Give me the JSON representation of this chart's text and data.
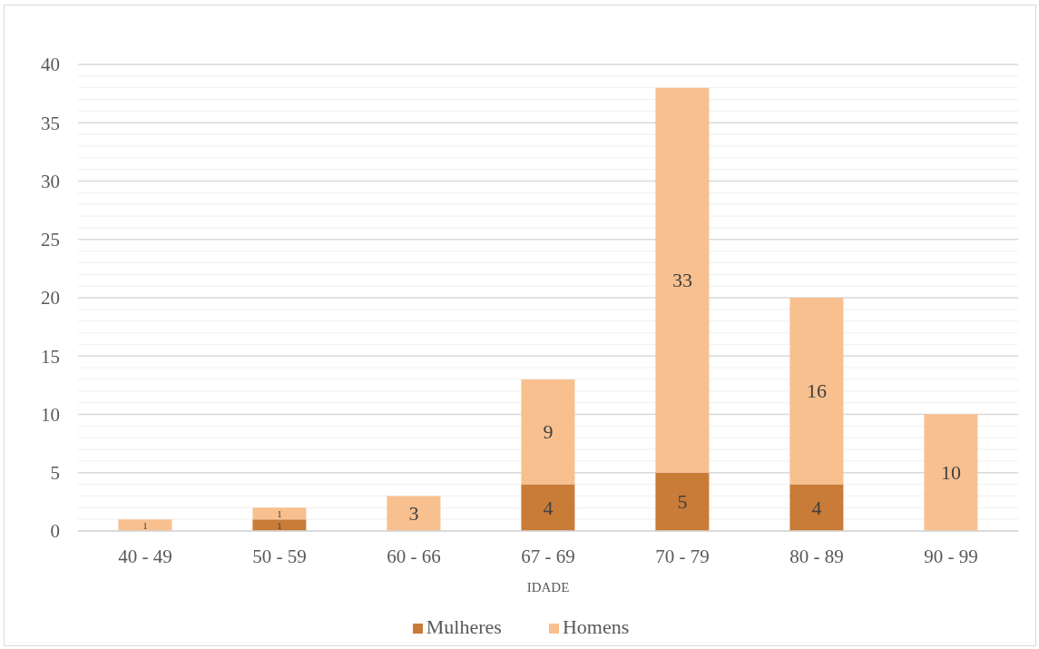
{
  "chart_data": {
    "type": "bar",
    "xlabel": "IDADE",
    "categories": [
      "40 - 49",
      "50 - 59",
      "60 - 66",
      "67 - 69",
      "70 - 79",
      "80 - 89",
      "90 - 99"
    ],
    "series": [
      {
        "name": "Mulheres",
        "color": "#c97b38",
        "values": [
          null,
          1,
          null,
          4,
          5,
          4,
          null
        ]
      },
      {
        "name": "Homens",
        "color": "#f8c08f",
        "values": [
          1,
          1,
          3,
          9,
          33,
          16,
          10
        ]
      }
    ],
    "stacked": true,
    "ylim": [
      0,
      40
    ],
    "yticks": [
      0,
      {
        "value": 1,
        "label": null
      },
      {
        "value": 2,
        "label": null
      },
      {
        "value": 3,
        "label": null
      },
      {
        "value": 4,
        "label": null
      },
      5,
      {
        "value": 6,
        "label": null
      },
      {
        "value": 7,
        "label": null
      },
      {
        "value": 8,
        "label": null
      },
      {
        "value": 9,
        "label": null
      },
      10,
      {
        "value": 11,
        "label": null
      },
      {
        "value": 12,
        "label": null
      },
      {
        "value": 13,
        "label": null
      },
      {
        "value": 14,
        "label": null
      },
      15,
      {
        "value": 16,
        "label": null
      },
      {
        "value": 17,
        "label": null
      },
      {
        "value": 18,
        "label": null
      },
      {
        "value": 19,
        "label": null
      },
      20,
      {
        "value": 21,
        "label": null
      },
      {
        "value": 22,
        "label": null
      },
      {
        "value": 23,
        "label": null
      },
      {
        "value": 24,
        "label": null
      },
      25,
      {
        "value": 26,
        "label": null
      },
      {
        "value": 27,
        "label": null
      },
      {
        "value": 28,
        "label": null
      },
      {
        "value": 29,
        "label": null
      },
      30,
      {
        "value": 31,
        "label": null
      },
      {
        "value": 32,
        "label": null
      },
      {
        "value": 33,
        "label": null
      },
      {
        "value": 34,
        "label": null
      },
      35,
      {
        "value": 36,
        "label": null
      },
      {
        "value": 37,
        "label": null
      },
      {
        "value": 38,
        "label": null
      },
      {
        "value": 39,
        "label": null
      },
      40
    ],
    "grid": "y",
    "legend": "bottom",
    "data_labels": true
  }
}
